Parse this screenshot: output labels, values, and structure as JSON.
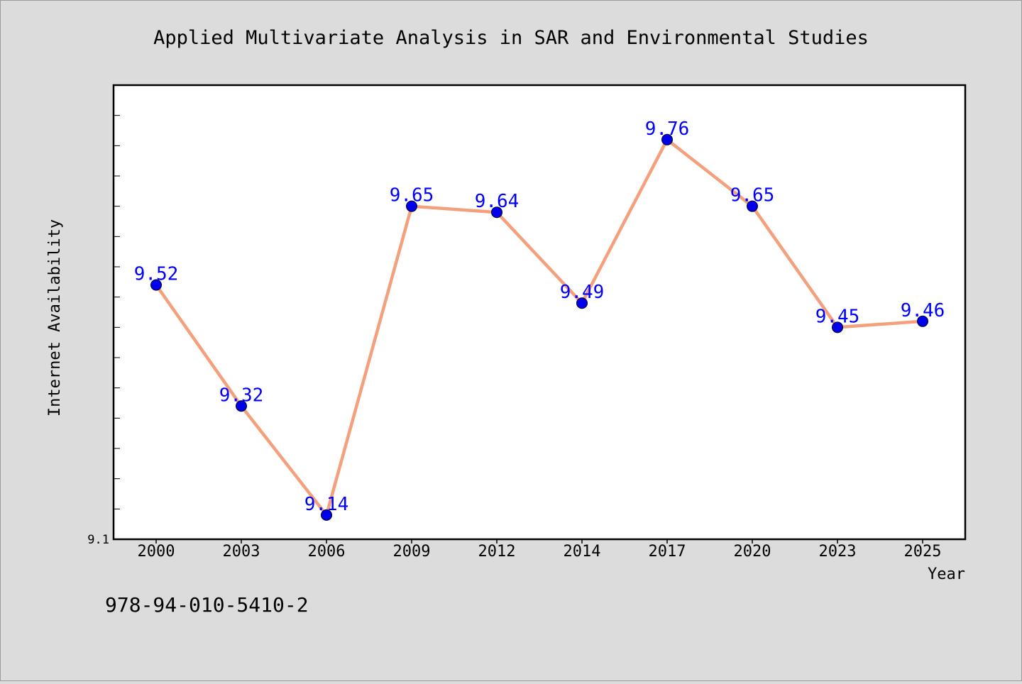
{
  "footer_text": "978-94-010-5410-2",
  "chart_data": {
    "type": "line",
    "title": "Applied Multivariate Analysis in SAR and Environmental Studies",
    "xlabel": "Year",
    "ylabel": "Internet Availability",
    "categories": [
      "2000",
      "2003",
      "2006",
      "2009",
      "2012",
      "2014",
      "2017",
      "2020",
      "2023",
      "2025"
    ],
    "series": [
      {
        "values": [
          9.52,
          9.32,
          9.14,
          9.65,
          9.64,
          9.49,
          9.76,
          9.65,
          9.45,
          9.46
        ],
        "labels": [
          "9.52",
          "9.32",
          "9.14",
          "9.65",
          "9.64",
          "9.49",
          "9.76",
          "9.65",
          "9.45",
          "9.46"
        ]
      }
    ],
    "ylim": [
      9.1,
      9.85
    ],
    "y_tick_labels": [
      "9.1"
    ],
    "grid": false,
    "colors": {
      "line": "#f4a07c",
      "marker": "#0000ee",
      "data_label": "#0000ff",
      "plot_bg": "#ffffff",
      "page_bg": "#dcdcdc"
    }
  }
}
